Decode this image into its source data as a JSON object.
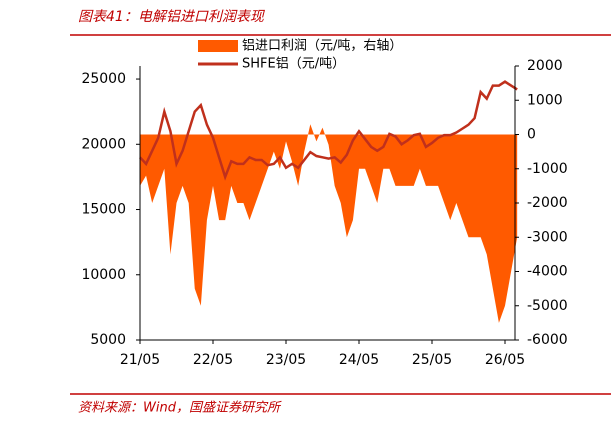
{
  "chart_data": {
    "type": "area-line",
    "title": "图表41：电解铝进口利润表现",
    "source": "资料来源：Wind，国盛证券研究所",
    "x": [
      "21/05",
      "21/06",
      "21/07",
      "21/08",
      "21/09",
      "21/10",
      "21/11",
      "21/12",
      "22/01",
      "22/02",
      "22/03",
      "22/04",
      "22/05",
      "22/06",
      "22/07",
      "22/08",
      "22/09",
      "22/10",
      "22/11",
      "22/12",
      "23/01",
      "23/02",
      "23/03",
      "23/04",
      "23/05",
      "23/06",
      "23/07",
      "23/08",
      "23/09",
      "23/10",
      "23/11",
      "23/12",
      "24/01",
      "24/02",
      "24/03",
      "24/04",
      "24/05",
      "24/06",
      "24/07",
      "24/08",
      "24/09",
      "24/10",
      "24/11",
      "24/12",
      "25/01",
      "25/02",
      "25/03",
      "25/04",
      "25/05",
      "25/06",
      "25/07",
      "25/08",
      "25/09",
      "25/10",
      "25/11",
      "25/12",
      "26/01",
      "26/02",
      "26/03",
      "26/04",
      "26/05",
      "26/06",
      "26/07"
    ],
    "xticks": [
      "21/05",
      "22/05",
      "23/05",
      "24/05",
      "25/05",
      "26/05"
    ],
    "series": [
      {
        "name": "铝进口利润（元/吨，右轴）",
        "color": "#ff5a00",
        "axis": "y2",
        "kind": "area",
        "values": [
          -1500,
          -1200,
          -2000,
          -1500,
          -1000,
          -3500,
          -2000,
          -1500,
          -2000,
          -4500,
          -5000,
          -2500,
          -1500,
          -2500,
          -2500,
          -1500,
          -2000,
          -2000,
          -2500,
          -2000,
          -1500,
          -1000,
          -500,
          -1000,
          -200,
          -800,
          -1500,
          -500,
          300,
          -200,
          200,
          -300,
          -1500,
          -2000,
          -3000,
          -2500,
          -1000,
          -1000,
          -1500,
          -2000,
          -1000,
          -1000,
          -1500,
          -1500,
          -1500,
          -1500,
          -1000,
          -1500,
          -1500,
          -1500,
          -2000,
          -2500,
          -2000,
          -2500,
          -3000,
          -3000,
          -3000,
          -3500,
          -4500,
          -5500,
          -5000,
          -4000,
          -3000
        ]
      },
      {
        "name": "SHFE铝（元/吨）",
        "color": "#c0301c",
        "kind": "line",
        "values": [
          19000,
          18500,
          19500,
          20500,
          22500,
          21000,
          18500,
          19500,
          21000,
          22500,
          23000,
          21500,
          20500,
          19000,
          17500,
          18700,
          18500,
          18500,
          19000,
          18800,
          18800,
          18400,
          18500,
          19000,
          18200,
          18500,
          18200,
          18800,
          19400,
          19100,
          19000,
          18900,
          19000,
          18600,
          19200,
          20300,
          21000,
          20400,
          19800,
          19500,
          19800,
          20800,
          20600,
          20000,
          20300,
          20700,
          20800,
          19800,
          20100,
          20500,
          20700,
          20700,
          20900,
          21200,
          21500,
          22000,
          24000,
          23500,
          24500,
          24500,
          24800,
          24500,
          24200
        ]
      }
    ],
    "ylim": [
      5000,
      26000
    ],
    "yticks": [
      5000,
      10000,
      15000,
      20000,
      25000
    ],
    "y2lim": [
      -6000,
      2000
    ],
    "y2ticks": [
      -6000,
      -5000,
      -4000,
      -3000,
      -2000,
      -1000,
      0,
      1000,
      2000
    ],
    "legend": "top"
  }
}
